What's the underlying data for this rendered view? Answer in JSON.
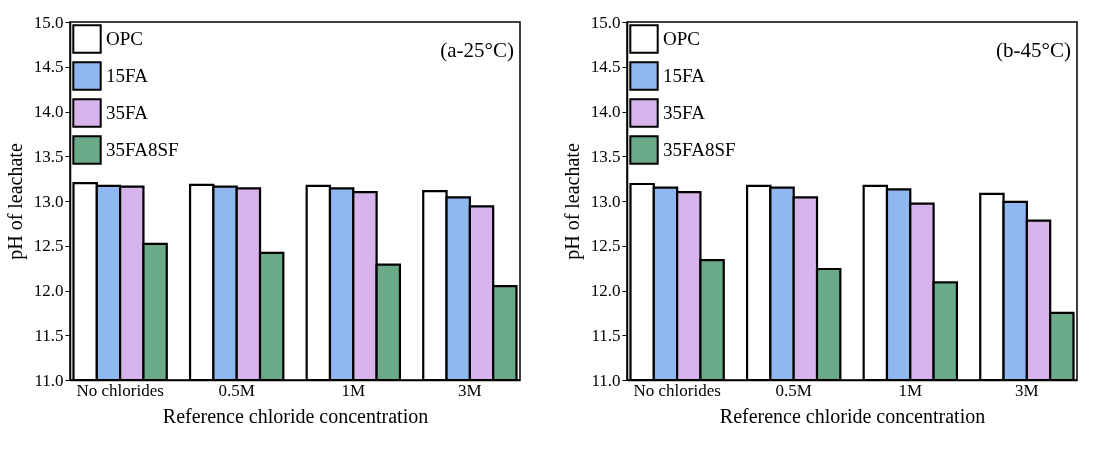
{
  "chart_data": [
    {
      "type": "bar",
      "annotations": [
        "(a-25°C)"
      ],
      "xlabel": "Reference chloride concentration",
      "ylabel": "pH of leachate",
      "categories": [
        "No chlorides",
        "0.5M",
        "1M",
        "3M"
      ],
      "series": [
        {
          "name": "OPC",
          "color": "#ffffff",
          "values": [
            13.2,
            13.18,
            13.17,
            13.11
          ]
        },
        {
          "name": "15FA",
          "color": "#8fb8f0",
          "values": [
            13.17,
            13.16,
            13.14,
            13.04
          ]
        },
        {
          "name": "35FA",
          "color": "#d8b4ec",
          "values": [
            13.16,
            13.14,
            13.1,
            12.94
          ]
        },
        {
          "name": "35FA8SF",
          "color": "#6aaa88",
          "values": [
            12.52,
            12.42,
            12.29,
            12.05
          ]
        }
      ],
      "ylim": [
        11,
        15
      ],
      "yticks": [
        {
          "value": 11,
          "label": "11.0"
        },
        11.5,
        {
          "value": 12,
          "label": "12.0"
        },
        12.5,
        {
          "value": 13,
          "label": "13.0"
        },
        13.5,
        {
          "value": 14,
          "label": "14.0"
        },
        14.5,
        {
          "value": 15,
          "label": "15.0"
        }
      ],
      "legend": "top left",
      "grid": false
    },
    {
      "type": "bar",
      "annotations": [
        "(b-45°C)"
      ],
      "xlabel": "Reference chloride concentration",
      "ylabel": "pH of leachate",
      "categories": [
        "No chlorides",
        "0.5M",
        "1M",
        "3M"
      ],
      "series": [
        {
          "name": "OPC",
          "color": "#ffffff",
          "values": [
            13.19,
            13.17,
            13.17,
            13.08
          ]
        },
        {
          "name": "15FA",
          "color": "#8fb8f0",
          "values": [
            13.15,
            13.15,
            13.13,
            12.99
          ]
        },
        {
          "name": "35FA",
          "color": "#d8b4ec",
          "values": [
            13.1,
            13.04,
            12.97,
            12.78
          ]
        },
        {
          "name": "35FA8SF",
          "color": "#6aaa88",
          "values": [
            12.34,
            12.24,
            12.09,
            11.75
          ]
        }
      ],
      "ylim": [
        11,
        15
      ],
      "yticks": [
        {
          "value": 11,
          "label": "11.0"
        },
        11.5,
        {
          "value": 12,
          "label": "12.0"
        },
        12.5,
        {
          "value": 13,
          "label": "13.0"
        },
        13.5,
        {
          "value": 14,
          "label": "14.0"
        },
        14.5,
        {
          "value": 15,
          "label": "15.0"
        }
      ],
      "legend": "top left",
      "grid": false
    }
  ]
}
